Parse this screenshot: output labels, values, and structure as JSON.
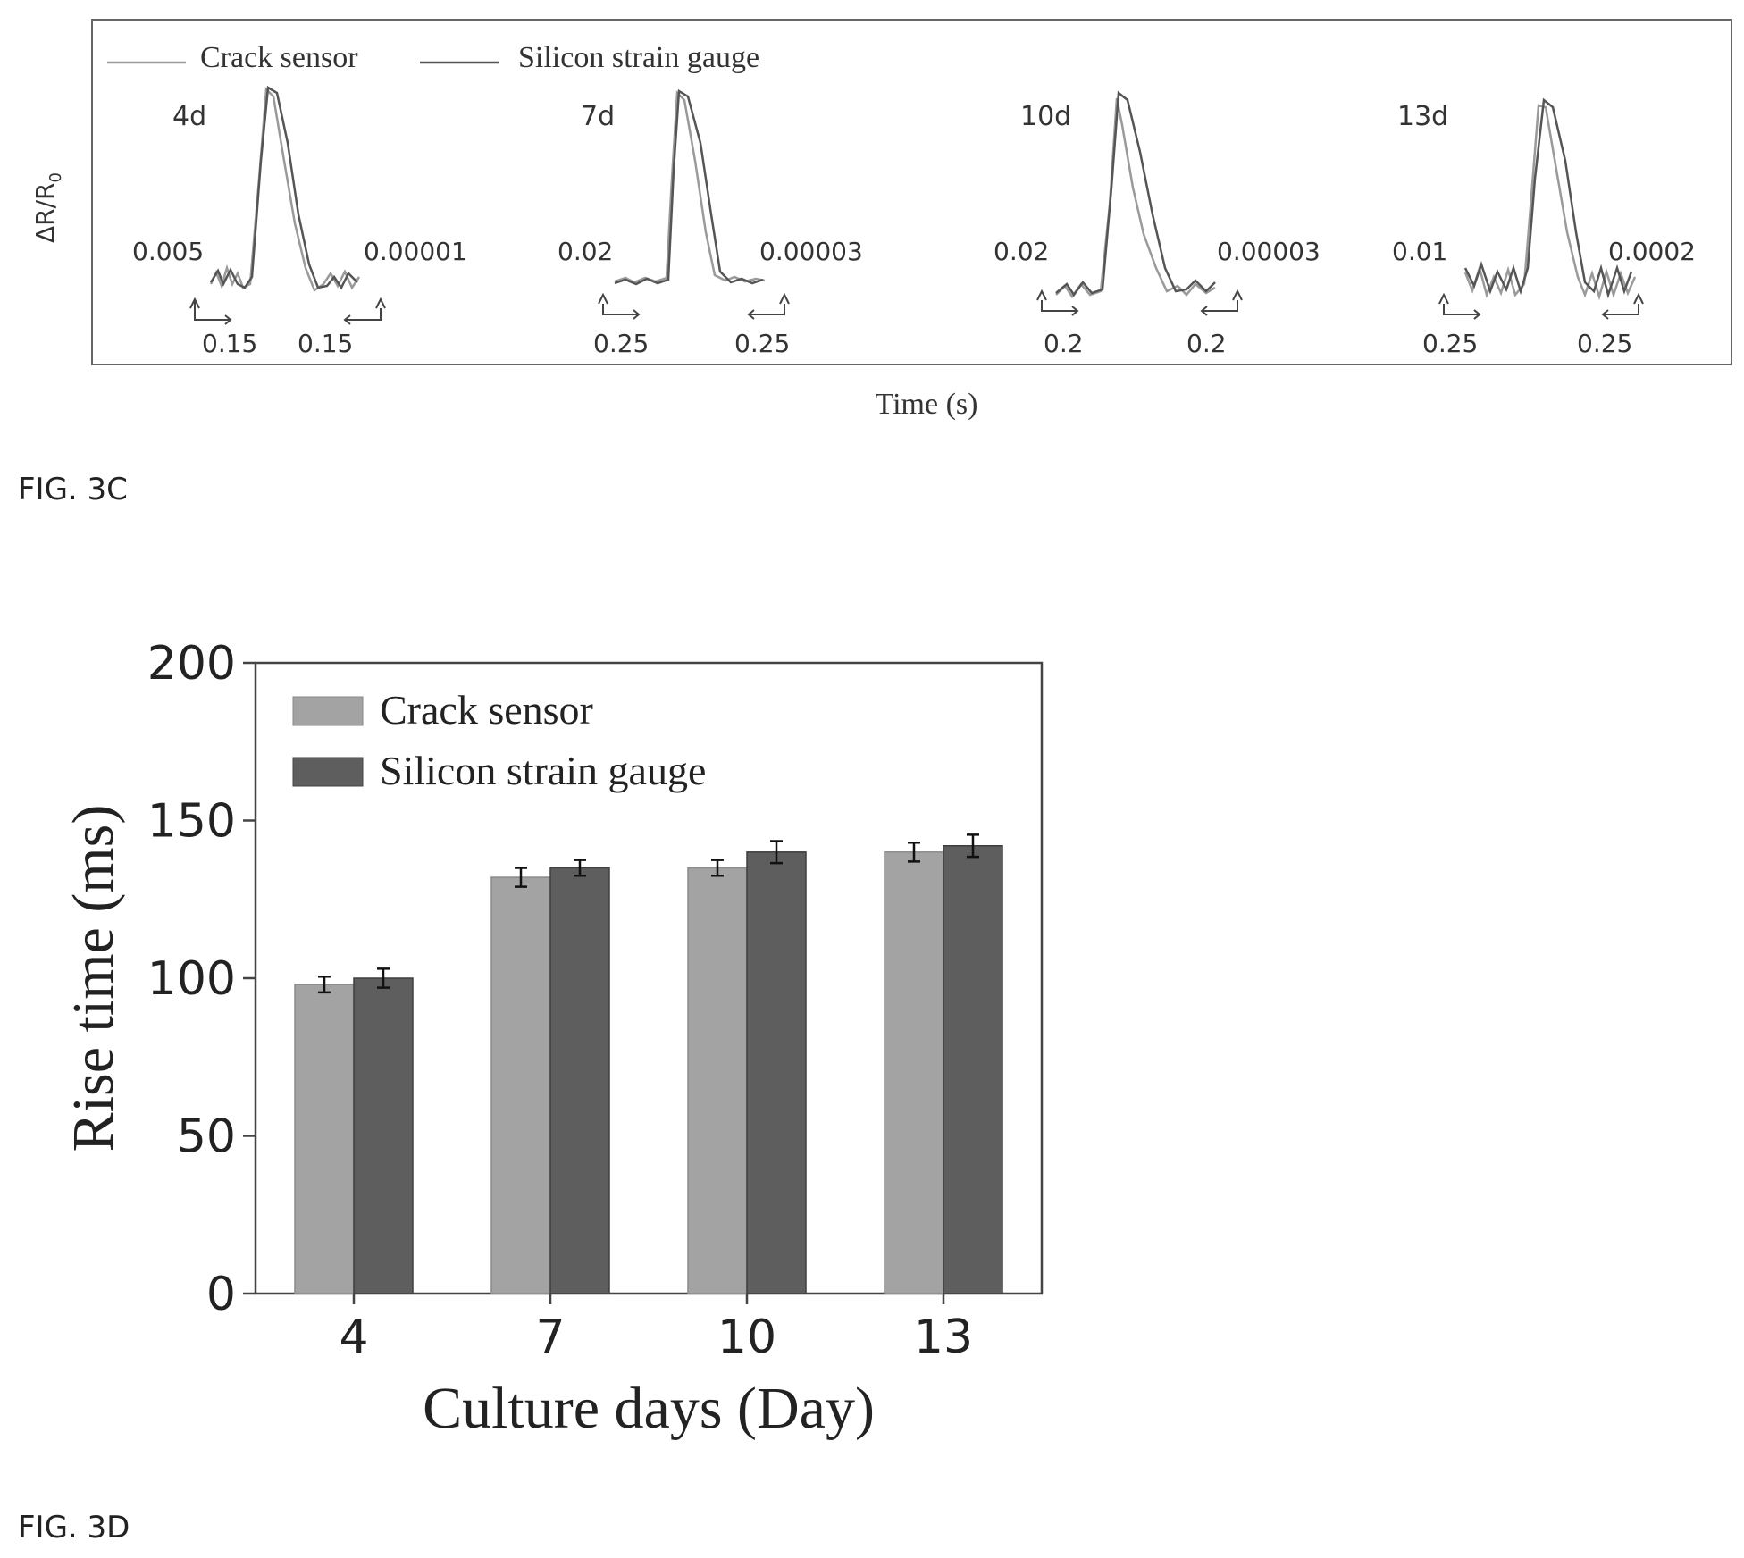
{
  "figure_3c": {
    "label": "FIG. 3C",
    "ylabel": "ΔR/R",
    "ylabel_sub": "0",
    "xlabel": "Time (s)",
    "legend": [
      "Crack sensor",
      "Silicon strain gauge"
    ]
  },
  "figure_3d": {
    "label": "FIG. 3D"
  },
  "chart_data": [
    {
      "type": "line",
      "xlabel": "Time (s)",
      "ylabel": "ΔR/R0",
      "grid": false,
      "legend_position": "top-left",
      "series_names": [
        "Crack sensor",
        "Silicon strain gauge"
      ],
      "panels": [
        {
          "title": "4d",
          "left_scale": "0.005",
          "right_scale": "0.00001",
          "left_time": "0.15",
          "right_time": "0.15"
        },
        {
          "title": "7d",
          "left_scale": "0.02",
          "right_scale": "0.00003",
          "left_time": "0.25",
          "right_time": "0.25"
        },
        {
          "title": "10d",
          "left_scale": "0.02",
          "right_scale": "0.00003",
          "left_time": "0.2",
          "right_time": "0.2"
        },
        {
          "title": "13d",
          "left_scale": "0.01",
          "right_scale": "0.0002",
          "left_time": "0.25",
          "right_time": "0.25"
        }
      ]
    },
    {
      "type": "bar",
      "categories": [
        "4",
        "7",
        "10",
        "13"
      ],
      "series": [
        {
          "name": "Crack sensor",
          "values": [
            98,
            132,
            135,
            140
          ],
          "errors": [
            2.5,
            3,
            2.5,
            3
          ],
          "color": "#a3a3a3"
        },
        {
          "name": "Silicon strain gauge",
          "values": [
            100,
            135,
            140,
            142
          ],
          "errors": [
            3,
            2.5,
            3.5,
            3.5
          ],
          "color": "#5e5e5e"
        }
      ],
      "xlabel": "Culture days (Day)",
      "ylabel": "Rise time (ms)",
      "ylim": [
        0,
        200
      ],
      "yticks": [
        "0",
        "50",
        "100",
        "150",
        "200"
      ],
      "grid": false,
      "legend_position": "top-left"
    }
  ]
}
